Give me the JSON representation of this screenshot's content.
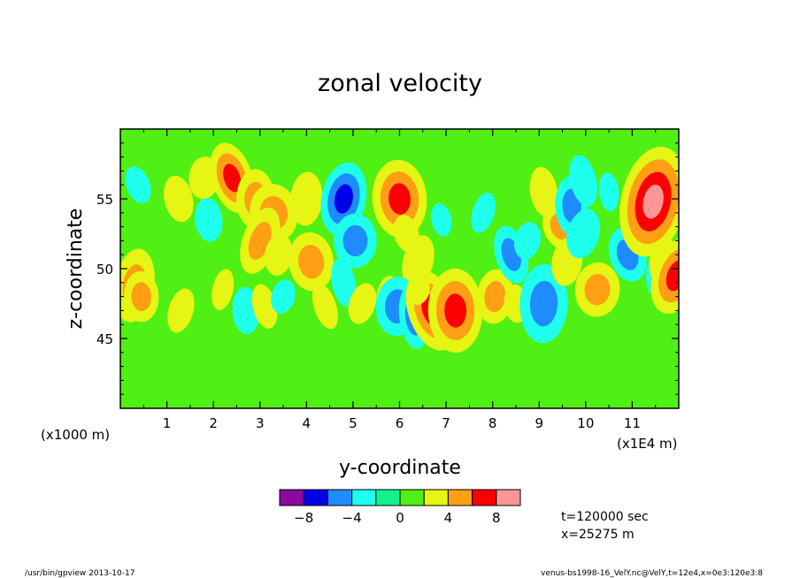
{
  "chart_data": {
    "type": "heatmap",
    "title": "zonal velocity",
    "xlabel": "y-coordinate",
    "ylabel": "z-coordinate",
    "x_unit_left": "(x1000 m)",
    "x_unit_right": "(x1E4 m)",
    "xlim": [
      0,
      12
    ],
    "ylim": [
      40,
      60
    ],
    "x_ticks": [
      "1",
      "2",
      "3",
      "4",
      "5",
      "6",
      "7",
      "8",
      "9",
      "10",
      "11"
    ],
    "y_ticks": [
      "45",
      "50",
      "55"
    ],
    "colorbar": {
      "bounds": [
        -10,
        -8,
        -6,
        -4,
        -2,
        0,
        2,
        4,
        6,
        8,
        10
      ],
      "tick_labels": [
        "-8",
        "-4",
        "0",
        "4",
        "8"
      ],
      "colors": [
        "#8a0aa0",
        "#0000e6",
        "#1e8cff",
        "#1effec",
        "#14f08c",
        "#50f014",
        "#e6f514",
        "#ffa014",
        "#fa0000",
        "#ff9696"
      ]
    },
    "background_level_color": "#50f014",
    "features": [
      {
        "y": 0.38,
        "z": 56.0,
        "value": -3.0
      },
      {
        "y": 0.3,
        "z": 48.8,
        "value": 5.5
      },
      {
        "y": 0.45,
        "z": 48.0,
        "value": 4.0
      },
      {
        "y": 1.25,
        "z": 55.0,
        "value": 2.5
      },
      {
        "y": 1.3,
        "z": 47.0,
        "value": 3.0
      },
      {
        "y": 1.8,
        "z": 56.5,
        "value": 3.5
      },
      {
        "y": 1.9,
        "z": 53.5,
        "value": -2.5
      },
      {
        "y": 2.4,
        "z": 56.5,
        "value": 6.5
      },
      {
        "y": 2.2,
        "z": 48.5,
        "value": 2.0
      },
      {
        "y": 2.9,
        "z": 55.0,
        "value": 4.5
      },
      {
        "y": 3.3,
        "z": 54.0,
        "value": 5.5
      },
      {
        "y": 3.0,
        "z": 52.0,
        "value": 5.0
      },
      {
        "y": 3.4,
        "z": 51.0,
        "value": 3.0
      },
      {
        "y": 2.7,
        "z": 47.0,
        "value": -2.5
      },
      {
        "y": 3.1,
        "z": 47.3,
        "value": 3.0
      },
      {
        "y": 3.5,
        "z": 48.0,
        "value": -2.5
      },
      {
        "y": 4.0,
        "z": 55.0,
        "value": 3.5
      },
      {
        "y": 4.1,
        "z": 50.5,
        "value": 5.0
      },
      {
        "y": 4.4,
        "z": 47.3,
        "value": 2.5
      },
      {
        "y": 4.8,
        "z": 55.0,
        "value": -6.0
      },
      {
        "y": 5.05,
        "z": 52.0,
        "value": -5.0
      },
      {
        "y": 4.8,
        "z": 49.0,
        "value": -3.0
      },
      {
        "y": 5.2,
        "z": 47.5,
        "value": 3.0
      },
      {
        "y": 5.75,
        "z": 48.0,
        "value": 2.0
      },
      {
        "y": 6.0,
        "z": 55.0,
        "value": 6.5
      },
      {
        "y": 6.15,
        "z": 52.5,
        "value": 3.0
      },
      {
        "y": 6.4,
        "z": 50.5,
        "value": 3.5
      },
      {
        "y": 5.95,
        "z": 47.3,
        "value": -5.0
      },
      {
        "y": 6.3,
        "z": 46.5,
        "value": -4.0
      },
      {
        "y": 6.7,
        "z": 47.0,
        "value": 7.0
      },
      {
        "y": 6.4,
        "z": 48.5,
        "value": 2.0
      },
      {
        "y": 7.2,
        "z": 47.0,
        "value": 6.5
      },
      {
        "y": 6.9,
        "z": 53.5,
        "value": -2.0
      },
      {
        "y": 7.8,
        "z": 54.0,
        "value": -2.0
      },
      {
        "y": 8.05,
        "z": 48.0,
        "value": 4.0
      },
      {
        "y": 8.5,
        "z": 47.5,
        "value": 3.0
      },
      {
        "y": 8.4,
        "z": 51.0,
        "value": -4.0
      },
      {
        "y": 8.75,
        "z": 52.0,
        "value": -2.5
      },
      {
        "y": 9.1,
        "z": 47.5,
        "value": -5.5
      },
      {
        "y": 9.1,
        "z": 55.5,
        "value": 3.5
      },
      {
        "y": 9.45,
        "z": 53.0,
        "value": 4.0
      },
      {
        "y": 9.6,
        "z": 50.5,
        "value": 3.0
      },
      {
        "y": 9.7,
        "z": 54.5,
        "value": -5.0
      },
      {
        "y": 9.95,
        "z": 56.3,
        "value": -3.0
      },
      {
        "y": 9.95,
        "z": 52.5,
        "value": -3.5
      },
      {
        "y": 10.25,
        "z": 48.5,
        "value": 5.0
      },
      {
        "y": 10.5,
        "z": 55.5,
        "value": -2.0
      },
      {
        "y": 10.9,
        "z": 51.0,
        "value": -4.5
      },
      {
        "y": 11.45,
        "z": 54.8,
        "value": 8.5
      },
      {
        "y": 11.55,
        "z": 49.5,
        "value": -3.0
      },
      {
        "y": 11.8,
        "z": 50.0,
        "value": 5.5
      },
      {
        "y": 11.95,
        "z": 49.5,
        "value": 6.0
      }
    ]
  },
  "annotation": {
    "time": "t=120000 sec",
    "position": "x=25275 m"
  },
  "footer": {
    "left": "/usr/bin/gpview  2013-10-17",
    "right": "venus-bs1998-16_VelY.nc@VelY,t=12e4,x=0e3:120e3:8"
  }
}
